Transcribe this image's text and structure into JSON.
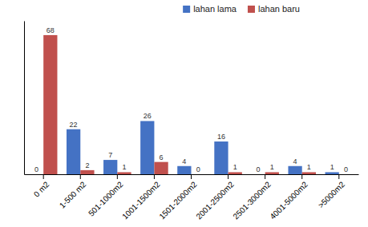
{
  "chart_data": {
    "type": "bar",
    "categories": [
      "0 m2",
      "1-500 m2",
      "501-1000m2",
      "1001-1500m2",
      "1501-2000m2",
      "2001-2500m2",
      "2501-3000m2",
      "4001-5000m2",
      ">5000m2"
    ],
    "series": [
      {
        "name": "lahan lama",
        "color": "#4472C4",
        "values": [
          0,
          22,
          7,
          26,
          4,
          16,
          0,
          4,
          1
        ]
      },
      {
        "name": "lahan baru",
        "color": "#C0504D",
        "values": [
          68,
          2,
          1,
          6,
          0,
          1,
          1,
          1,
          0
        ]
      }
    ],
    "ylim": [
      0,
      75
    ],
    "data_labels": true,
    "tick_labels": "x",
    "legend": "top"
  }
}
